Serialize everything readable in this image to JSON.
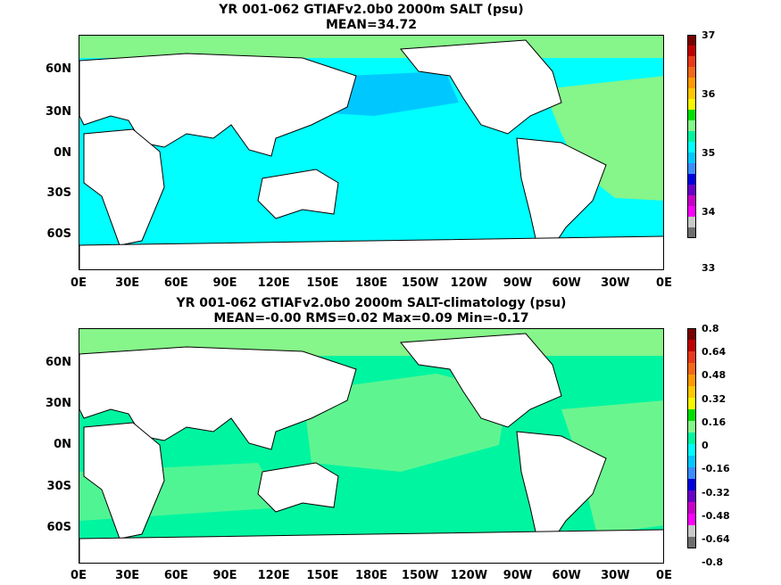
{
  "panel1": {
    "title_line1": "YR 001-062 GTIAFv2.0b0 2000m SALT (psu)",
    "title_line2": "MEAN=34.72",
    "colorbar_labels": [
      "37",
      "36",
      "35",
      "34",
      "33"
    ]
  },
  "panel2": {
    "title_line1": "YR 001-062 GTIAFv2.0b0 2000m SALT-climatology (psu)",
    "title_line2": "MEAN=-0.00   RMS=0.02   Max=0.09   Min=-0.17",
    "colorbar_labels": [
      "0.8",
      "0.64",
      "0.48",
      "0.32",
      "0.16",
      "0",
      "-0.16",
      "-0.32",
      "-0.48",
      "-0.64",
      "-0.8"
    ]
  },
  "axes": {
    "y_ticks": [
      "60N",
      "30N",
      "0N",
      "30S",
      "60S"
    ],
    "x_ticks": [
      "0E",
      "30E",
      "60E",
      "90E",
      "120E",
      "150E",
      "180E",
      "150W",
      "120W",
      "90W",
      "60W",
      "30W",
      "0E"
    ]
  },
  "colors": {
    "cyan": "#00ffff",
    "sky": "#00c8ff",
    "mint": "#00f5a0",
    "lightgreen": "#86f58a",
    "land": "#ffffff",
    "coast": "#000000"
  }
}
